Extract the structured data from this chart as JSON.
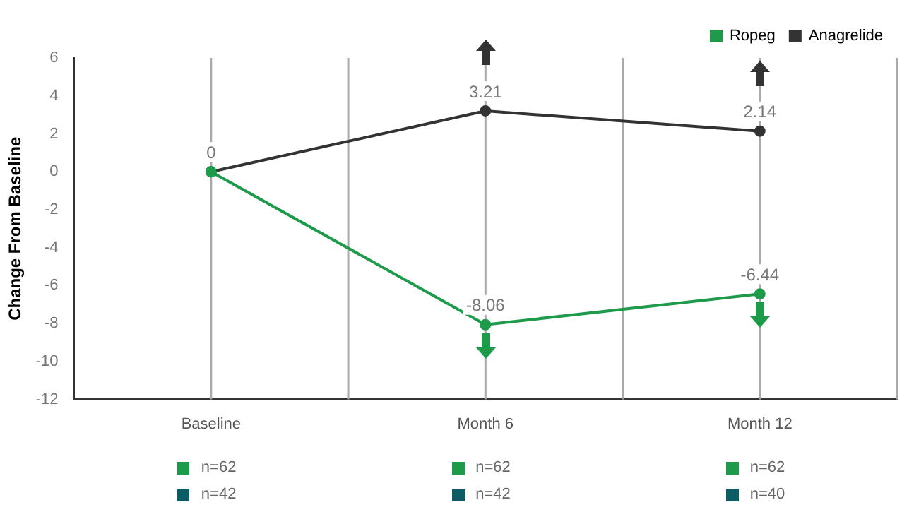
{
  "chart_data": {
    "type": "line",
    "ylabel": "Change From Baseline",
    "categories": [
      "Baseline",
      "Month 6",
      "Month 12"
    ],
    "series": [
      {
        "name": "Ropeg",
        "color": "#1e9a4b",
        "values": [
          0,
          -8.06,
          -6.44
        ],
        "value_labels": [
          "0",
          "-8.06",
          "-6.44"
        ]
      },
      {
        "name": "Anagrelide",
        "color": "#333333",
        "values": [
          0,
          3.21,
          2.14
        ],
        "value_labels": [
          null,
          "3.21",
          "2.14"
        ]
      }
    ],
    "ylim": [
      -12,
      6
    ],
    "yticks": [
      -12,
      -10,
      -8,
      -6,
      -4,
      -2,
      0,
      2,
      4,
      6
    ],
    "grid": "x",
    "legend": "top right",
    "marker": "circle",
    "line_style": "solid",
    "annotations": [
      "n=62",
      "n=42",
      "n=62",
      "n=42",
      "n=62",
      "n=40"
    ]
  }
}
